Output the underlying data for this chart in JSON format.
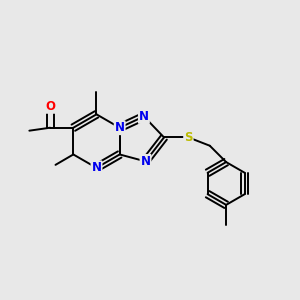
{
  "bg_color": "#e8e8e8",
  "atom_colors": {
    "C": "#000000",
    "N": "#0000ee",
    "O": "#ff0000",
    "S": "#bbbb00"
  },
  "bond_color": "#000000",
  "bond_width": 1.4,
  "font_size": 8.5,
  "figsize": [
    3.0,
    3.0
  ],
  "dpi": 100,
  "xlim": [
    0,
    10
  ],
  "ylim": [
    0,
    10
  ]
}
